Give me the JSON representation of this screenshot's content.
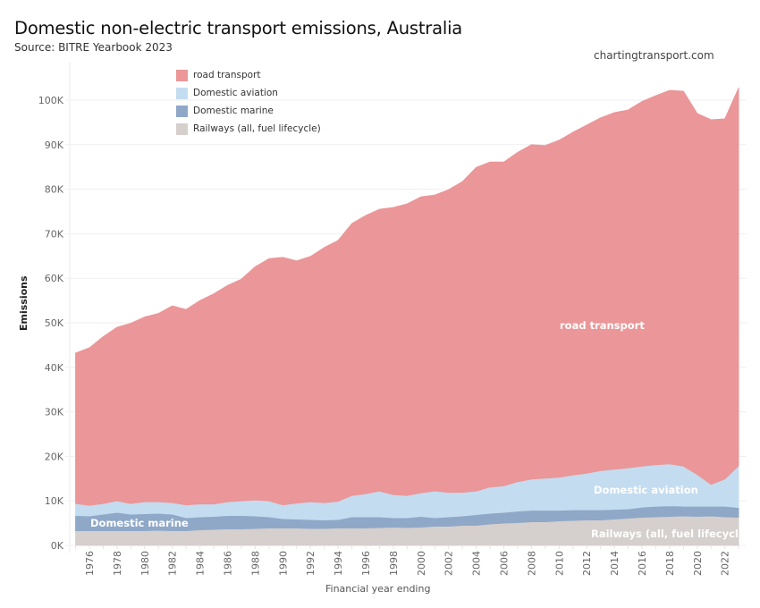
{
  "header": {
    "title": "Domestic non-electric transport emissions, Australia",
    "subtitle": "Source: BITRE Yearbook 2023",
    "credit": "chartingtransport.com"
  },
  "chart_data": {
    "type": "area",
    "stacked": true,
    "title": "Domestic non-electric transport emissions, Australia",
    "subtitle": "Source: BITRE Yearbook 2023",
    "xlabel": "Financial year ending",
    "ylabel": "Emissions",
    "x": [
      1975,
      1976,
      1977,
      1978,
      1979,
      1980,
      1981,
      1982,
      1983,
      1984,
      1985,
      1986,
      1987,
      1988,
      1989,
      1990,
      1991,
      1992,
      1993,
      1994,
      1995,
      1996,
      1997,
      1998,
      1999,
      2000,
      2001,
      2002,
      2003,
      2004,
      2005,
      2006,
      2007,
      2008,
      2009,
      2010,
      2011,
      2012,
      2013,
      2014,
      2015,
      2016,
      2017,
      2018,
      2019,
      2020,
      2021,
      2022,
      2023
    ],
    "xticks": [
      1976,
      1978,
      1980,
      1982,
      1984,
      1986,
      1988,
      1990,
      1992,
      1994,
      1996,
      1998,
      2000,
      2002,
      2004,
      2006,
      2008,
      2010,
      2012,
      2014,
      2016,
      2018,
      2020,
      2022
    ],
    "yticks": [
      0,
      10000,
      20000,
      30000,
      40000,
      50000,
      60000,
      70000,
      80000,
      90000,
      100000
    ],
    "ytick_labels": [
      "0K",
      "10K",
      "20K",
      "30K",
      "40K",
      "50K",
      "60K",
      "70K",
      "80K",
      "90K",
      "100K"
    ],
    "ylim": [
      0,
      107000
    ],
    "grid": true,
    "legend_position": "top-left",
    "series": [
      {
        "name": "Railways (all, fuel lifecycle)",
        "color": "#d5cfcd",
        "label": "Railways (all, fuel lifecycle)",
        "values": [
          3300,
          3300,
          3300,
          3300,
          3300,
          3300,
          3400,
          3300,
          3300,
          3500,
          3600,
          3700,
          3700,
          3800,
          3900,
          3900,
          3900,
          3800,
          3800,
          3900,
          3900,
          3900,
          4000,
          4100,
          4000,
          4100,
          4300,
          4300,
          4500,
          4500,
          4800,
          5000,
          5100,
          5300,
          5300,
          5500,
          5600,
          5700,
          5700,
          5900,
          6100,
          6300,
          6400,
          6500,
          6600,
          6500,
          6600,
          6400,
          6300
        ]
      },
      {
        "name": "Domestic marine",
        "color": "#8fa8c8",
        "label": "Domestic marine",
        "values": [
          3400,
          3300,
          3700,
          4100,
          3700,
          3800,
          3800,
          3700,
          2900,
          2900,
          2900,
          3000,
          3000,
          2800,
          2500,
          2100,
          2000,
          2000,
          1900,
          1900,
          2500,
          2500,
          2400,
          2100,
          2200,
          2400,
          1900,
          2100,
          2100,
          2400,
          2400,
          2400,
          2600,
          2600,
          2600,
          2400,
          2400,
          2300,
          2300,
          2200,
          2100,
          2300,
          2400,
          2400,
          2200,
          2300,
          2200,
          2400,
          2200
        ]
      },
      {
        "name": "Domestic aviation",
        "color": "#c4dcef",
        "label": "Domestic aviation",
        "values": [
          2700,
          2400,
          2400,
          2600,
          2400,
          2700,
          2600,
          2600,
          2900,
          2900,
          2800,
          3100,
          3300,
          3600,
          3600,
          3100,
          3600,
          4000,
          3900,
          4100,
          4800,
          5200,
          5800,
          5200,
          5000,
          5300,
          6000,
          5500,
          5300,
          5300,
          5900,
          6000,
          6600,
          7000,
          7200,
          7400,
          7800,
          8200,
          8800,
          9000,
          9200,
          9200,
          9300,
          9400,
          9000,
          7100,
          4900,
          6100,
          9400
        ]
      },
      {
        "name": "road transport",
        "color": "#eb9698",
        "label": "road transport",
        "values": [
          33800,
          35400,
          37500,
          39000,
          40500,
          41500,
          42300,
          44200,
          43900,
          45700,
          47200,
          48600,
          49800,
          52400,
          54400,
          55600,
          54400,
          55100,
          57300,
          58600,
          61100,
          62500,
          63300,
          64500,
          65500,
          66500,
          66500,
          68000,
          69800,
          72700,
          73000,
          72700,
          74000,
          75100,
          74700,
          75700,
          77000,
          78200,
          79200,
          80100,
          80400,
          81900,
          82900,
          83900,
          84200,
          81100,
          81900,
          80900,
          84900
        ]
      }
    ],
    "annotations": [
      "road transport",
      "Domestic aviation",
      "Domestic marine",
      "Railways (all, fuel lifecycle)"
    ]
  }
}
